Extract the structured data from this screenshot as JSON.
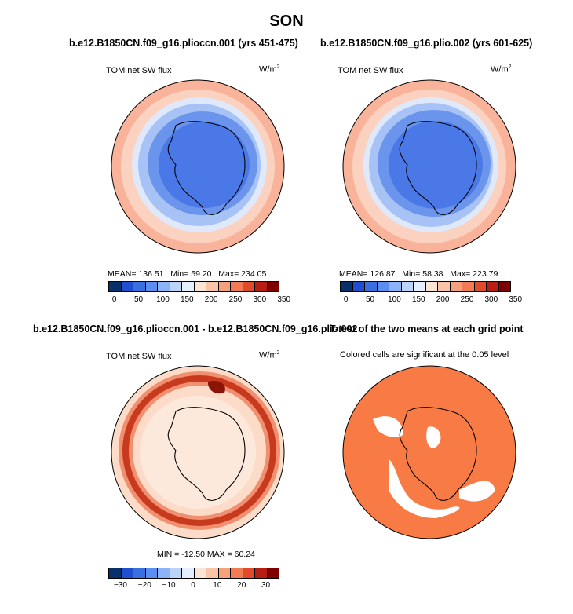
{
  "figure": {
    "title": "SON"
  },
  "panels": [
    {
      "title": "b.e12.B1850CN.f09_g16.plioccn.001 (yrs 451-475)",
      "left_label": "TOM net SW flux",
      "units": "W/m",
      "units_sup": "2",
      "stats": {
        "mean": "MEAN= 136.51",
        "min": "Min= 59.20",
        "max": "Max= 234.05"
      },
      "colorbar": {
        "colors": [
          "#08306b",
          "#1f4fcf",
          "#3a6fe0",
          "#5b8ef0",
          "#8cb3f7",
          "#bcd4fa",
          "#e6efff",
          "#fde5d6",
          "#fbc4a8",
          "#f7a07c",
          "#f37b53",
          "#e04b2c",
          "#b81d13",
          "#7f0000"
        ],
        "ticks": [
          "0",
          "50",
          "100",
          "150",
          "200",
          "250",
          "300",
          "350"
        ]
      }
    },
    {
      "title": "b.e12.B1850CN.f09_g16.plio.002 (yrs 601-625)",
      "left_label": "TOM net SW flux",
      "units": "W/m",
      "units_sup": "2",
      "stats": {
        "mean": "MEAN= 126.87",
        "min": "Min= 58.38",
        "max": "Max= 223.79"
      },
      "colorbar": {
        "colors": [
          "#08306b",
          "#1f4fcf",
          "#3a6fe0",
          "#5b8ef0",
          "#8cb3f7",
          "#bcd4fa",
          "#e6efff",
          "#fde5d6",
          "#fbc4a8",
          "#f7a07c",
          "#f37b53",
          "#e04b2c",
          "#b81d13",
          "#7f0000"
        ],
        "ticks": [
          "0",
          "50",
          "100",
          "150",
          "200",
          "250",
          "300",
          "350"
        ]
      }
    },
    {
      "title": "b.e12.B1850CN.f09_g16.plioccn.001 - b.e12.B1850CN.f09_g16.plio.002",
      "left_label": "TOM net SW flux",
      "units": "W/m",
      "units_sup": "2",
      "stats": {
        "minmax": "MIN = -12.50 MAX = 60.24"
      },
      "colorbar": {
        "colors": [
          "#08306b",
          "#1f4fcf",
          "#3a6fe0",
          "#5b8ef0",
          "#8cb3f7",
          "#bcd4fa",
          "#e6efff",
          "#fde5d6",
          "#fbc4a8",
          "#f7a07c",
          "#f37b53",
          "#e04b2c",
          "#b81d13",
          "#7f0000"
        ],
        "ticks": [
          "-30",
          "-20",
          "-10",
          "0",
          "10",
          "20",
          "30"
        ]
      }
    },
    {
      "title": "T-test of the two means at each grid point",
      "subtitle": "Colored cells are significant at the 0.05 level"
    }
  ],
  "colors": {
    "ocean_fill": "#fcdcc8",
    "ice_blue": "#4a78e6",
    "significant": "#f87a45",
    "diff_band": "#c83a1e"
  }
}
